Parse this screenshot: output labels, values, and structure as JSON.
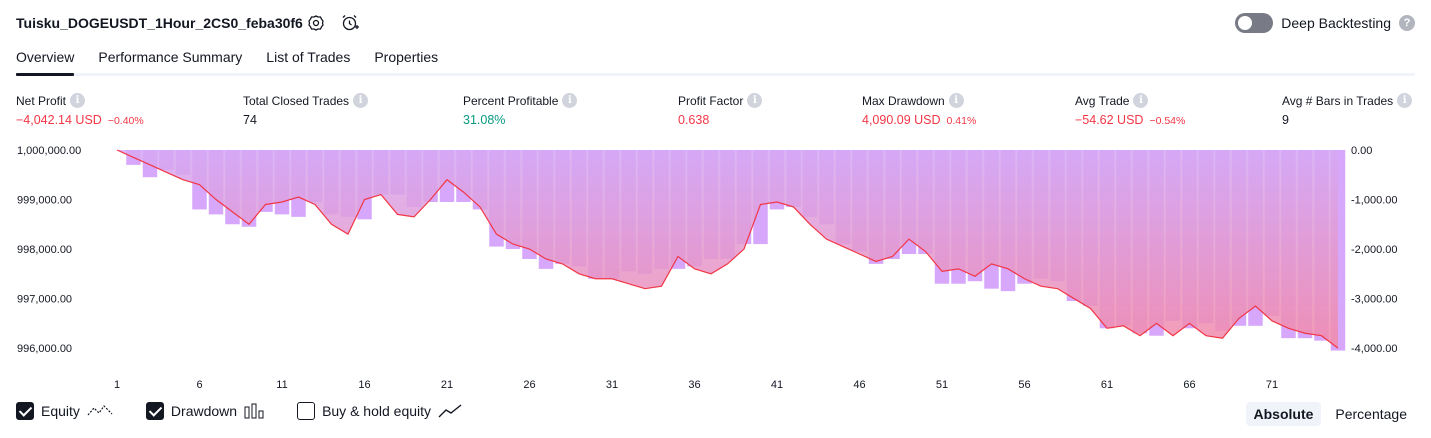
{
  "header": {
    "title": "Tuisku_DOGEUSDT_1Hour_2CS0_feba30f6",
    "deep_backtesting_label": "Deep Backtesting",
    "help_glyph": "?"
  },
  "tabs": [
    {
      "label": "Overview",
      "active": true
    },
    {
      "label": "Performance Summary",
      "active": false
    },
    {
      "label": "List of Trades",
      "active": false
    },
    {
      "label": "Properties",
      "active": false
    }
  ],
  "metrics": [
    {
      "label": "Net Profit",
      "value": "−4,042.14 USD",
      "pct": "−0.40%",
      "tone": "neg"
    },
    {
      "label": "Total Closed Trades",
      "value": "74",
      "pct": "",
      "tone": "neutral"
    },
    {
      "label": "Percent Profitable",
      "value": "31.08%",
      "pct": "",
      "tone": "pos"
    },
    {
      "label": "Profit Factor",
      "value": "0.638",
      "pct": "",
      "tone": "neg"
    },
    {
      "label": "Max Drawdown",
      "value": "4,090.09 USD",
      "pct": "0.41%",
      "tone": "neg"
    },
    {
      "label": "Avg Trade",
      "value": "−54.62 USD",
      "pct": "−0.54%",
      "tone": "neg"
    },
    {
      "label": "Avg # Bars in Trades",
      "value": "9",
      "pct": "",
      "tone": "neutral"
    }
  ],
  "info_glyph": "i",
  "chart_data": {
    "type": "line",
    "x_ticks": [
      "1",
      "6",
      "11",
      "16",
      "21",
      "26",
      "31",
      "36",
      "41",
      "46",
      "51",
      "56",
      "61",
      "66",
      "71"
    ],
    "left_ticks": [
      "1,000,000.00",
      "999,000.00",
      "998,000.00",
      "997,000.00",
      "996,000.00"
    ],
    "right_ticks": [
      "0.00",
      "-1,000.00",
      "-2,000.00",
      "-3,000.00",
      "-4,000.00"
    ],
    "left_ylim": [
      995800,
      1000000
    ],
    "right_ylim": [
      -4200,
      0
    ],
    "series": [
      {
        "name": "Equity",
        "color": "#f23645",
        "x": [
          1,
          2,
          3,
          4,
          5,
          6,
          7,
          8,
          9,
          10,
          11,
          12,
          13,
          14,
          15,
          16,
          17,
          18,
          19,
          20,
          21,
          22,
          23,
          24,
          25,
          26,
          27,
          28,
          29,
          30,
          31,
          32,
          33,
          34,
          35,
          36,
          37,
          38,
          39,
          40,
          41,
          42,
          43,
          44,
          45,
          46,
          47,
          48,
          49,
          50,
          51,
          52,
          53,
          54,
          55,
          56,
          57,
          58,
          59,
          60,
          61,
          62,
          63,
          64,
          65,
          66,
          67,
          68,
          69,
          70,
          71,
          72,
          73,
          74,
          75
        ],
        "values": [
          1000000,
          999850,
          999700,
          999550,
          999400,
          999300,
          999000,
          998750,
          998500,
          998900,
          998950,
          999050,
          998900,
          998500,
          998300,
          999000,
          999100,
          998700,
          998650,
          999000,
          999400,
          999150,
          998850,
          998300,
          998100,
          998000,
          997800,
          997700,
          997500,
          997400,
          997400,
          997300,
          997200,
          997250,
          997850,
          997600,
          997500,
          997700,
          998000,
          998900,
          998950,
          998850,
          998500,
          998200,
          998050,
          997900,
          997750,
          997850,
          998200,
          997950,
          997550,
          997600,
          997450,
          997700,
          997600,
          997400,
          997250,
          997200,
          997000,
          996800,
          996400,
          996450,
          996250,
          996500,
          996250,
          996500,
          996250,
          996200,
          996600,
          996850,
          996550,
          996400,
          996300,
          996250,
          996000
        ]
      },
      {
        "name": "Drawdown",
        "color": "#d6a7fb",
        "x": [
          1,
          2,
          3,
          4,
          5,
          6,
          7,
          8,
          9,
          10,
          11,
          12,
          13,
          14,
          15,
          16,
          17,
          18,
          19,
          20,
          21,
          22,
          23,
          24,
          25,
          26,
          27,
          28,
          29,
          30,
          31,
          32,
          33,
          34,
          35,
          36,
          37,
          38,
          39,
          40,
          41,
          42,
          43,
          44,
          45,
          46,
          47,
          48,
          49,
          50,
          51,
          52,
          53,
          54,
          55,
          56,
          57,
          58,
          59,
          60,
          61,
          62,
          63,
          64,
          65,
          66,
          67,
          68,
          69,
          70,
          71,
          72,
          73,
          74,
          75
        ],
        "values": [
          0,
          -300,
          -550,
          -400,
          -500,
          -1200,
          -1300,
          -1500,
          -1550,
          -1250,
          -1300,
          -1350,
          -1050,
          -1300,
          -1350,
          -1400,
          -900,
          -900,
          -1150,
          -1050,
          -1050,
          -1050,
          -1200,
          -1950,
          -2000,
          -2200,
          -2400,
          -2300,
          -2350,
          -2600,
          -2600,
          -2450,
          -2500,
          -2400,
          -2400,
          -2350,
          -2200,
          -2200,
          -1900,
          -1900,
          -1200,
          -1150,
          -1350,
          -1500,
          -1900,
          -2050,
          -2300,
          -2200,
          -2100,
          -2100,
          -2700,
          -2700,
          -2650,
          -2800,
          -2850,
          -2700,
          -2600,
          -2650,
          -3050,
          -3150,
          -3600,
          -3550,
          -3700,
          -3750,
          -3450,
          -3600,
          -3500,
          -3650,
          -3550,
          -3550,
          -3350,
          -3800,
          -3800,
          -3850,
          -4050
        ]
      },
      {
        "name": "Buy & hold equity",
        "visible": false,
        "values": []
      }
    ]
  },
  "footer": {
    "equity_label": "Equity",
    "drawdown_label": "Drawdown",
    "buyhold_label": "Buy & hold equity",
    "absolute_label": "Absolute",
    "percentage_label": "Percentage"
  }
}
